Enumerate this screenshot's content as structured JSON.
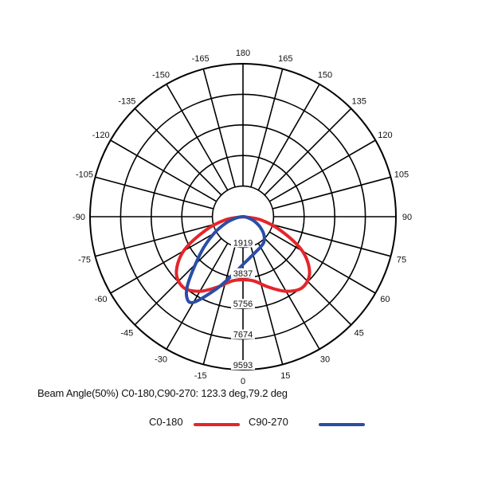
{
  "chart_data": {
    "type": "polar",
    "angle_ticks": [
      "180",
      "165",
      "150",
      "135",
      "120",
      "105",
      "90",
      "75",
      "60",
      "45",
      "30",
      "15",
      "0",
      "-15",
      "-30",
      "-45",
      "-60",
      "-75",
      "-90",
      "-105",
      "-120",
      "-135",
      "-150",
      "-165"
    ],
    "radial_ticks": [
      "1919",
      "3837",
      "5756",
      "7674",
      "9593"
    ],
    "radial_values": [
      1919,
      3837,
      5756,
      7674,
      9593
    ],
    "rlim": [
      0,
      9593
    ],
    "grid": true,
    "legend_position": "bottom",
    "annotation": "Beam Angle(50%) C0-180,C90-270: 123.3 deg,79.2 deg",
    "series": [
      {
        "name": "C0-180",
        "color": "#e5252a",
        "angles": [
          -90,
          -80,
          -70,
          -60,
          -50,
          -40,
          -30,
          -20,
          -10,
          0,
          10,
          20,
          30,
          40,
          50,
          60,
          70,
          80,
          90
        ],
        "values": [
          0,
          1100,
          2500,
          4300,
          5450,
          5800,
          5400,
          4700,
          4100,
          3950,
          4100,
          4700,
          5400,
          5800,
          5450,
          4300,
          2500,
          1100,
          0
        ]
      },
      {
        "name": "C90-270",
        "color": "#2a4ea6",
        "angles": [
          -90,
          -80,
          -70,
          -60,
          -50,
          -40,
          -35,
          -30,
          -20,
          -10,
          0,
          10,
          20,
          30,
          40,
          50,
          60,
          70,
          80,
          90
        ],
        "values": [
          0,
          400,
          1100,
          2100,
          3400,
          5300,
          6150,
          6200,
          4800,
          3700,
          3000,
          2600,
          2350,
          2200,
          2050,
          1700,
          1200,
          700,
          250,
          0
        ]
      }
    ]
  }
}
